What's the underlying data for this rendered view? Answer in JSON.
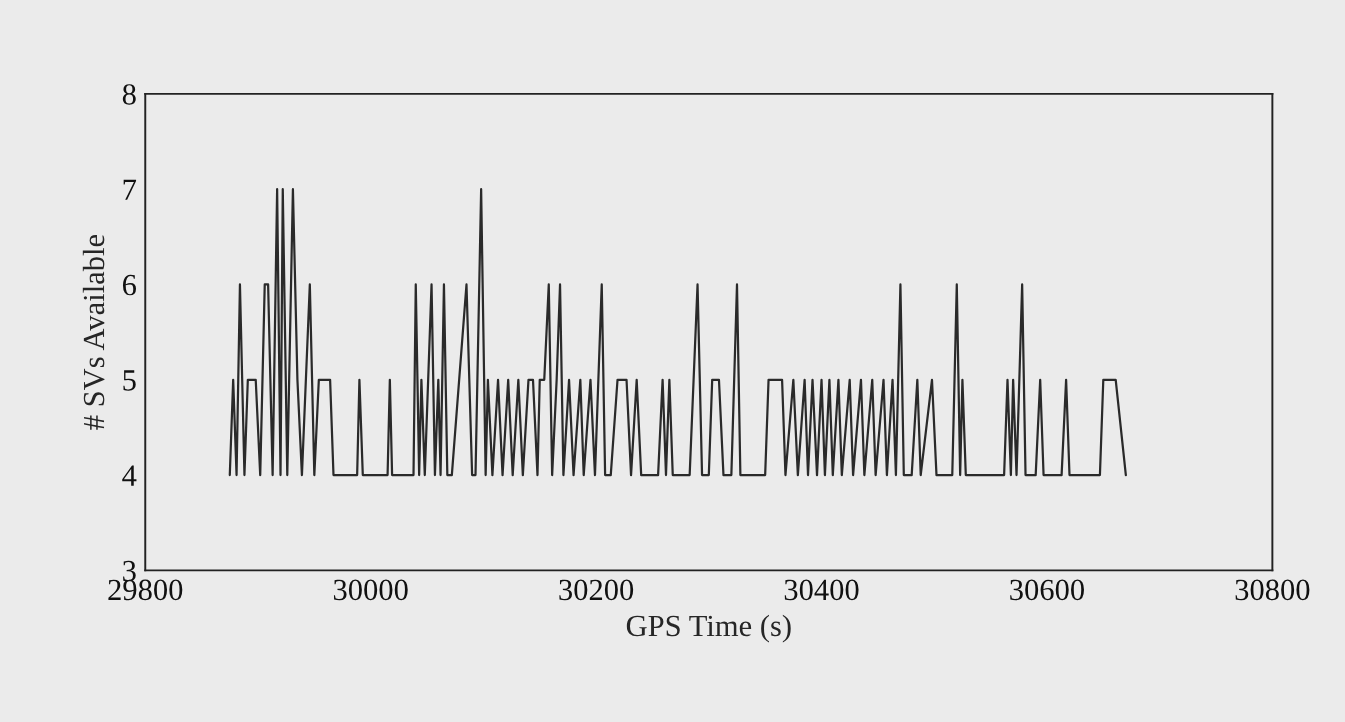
{
  "chart_data": {
    "type": "line",
    "xlabel": "GPS Time (s)",
    "ylabel": "# SVs Available",
    "xlim": [
      29800,
      30800
    ],
    "xticks": [
      29800,
      30000,
      30200,
      30400,
      30600,
      30800
    ],
    "ylim": [
      3,
      8
    ],
    "yticks": [
      3,
      4,
      5,
      6,
      7,
      8
    ],
    "grid": false,
    "legend": false,
    "marker": "none",
    "line_style": "solid",
    "series": [
      {
        "color": "#2a2a2a",
        "x": [
          29875,
          29878,
          29881,
          29884,
          29888,
          29891,
          29898,
          29902,
          29906,
          29909,
          29913,
          29917,
          29920,
          29922,
          29926,
          29931,
          29935,
          29939,
          29946,
          29950,
          29954,
          29964,
          29967,
          29988,
          29990,
          29993,
          30015,
          30017,
          30019,
          30038,
          30040,
          30043,
          30045,
          30048,
          30054,
          30057,
          30060,
          30062,
          30065,
          30068,
          30072,
          30085,
          30090,
          30093,
          30098,
          30102,
          30104,
          30108,
          30113,
          30117,
          30122,
          30126,
          30131,
          30135,
          30140,
          30144,
          30148,
          30150,
          30154,
          30158,
          30161,
          30165,
          30168,
          30171,
          30176,
          30180,
          30186,
          30189,
          30195,
          30199,
          30205,
          30208,
          30213,
          30219,
          30227,
          30231,
          30236,
          30240,
          30255,
          30259,
          30262,
          30265,
          30268,
          30283,
          30290,
          30294,
          30300,
          30303,
          30309,
          30313,
          30320,
          30325,
          30328,
          30350,
          30353,
          30365,
          30368,
          30375,
          30379,
          30385,
          30388,
          30392,
          30396,
          30400,
          30403,
          30407,
          30410,
          30415,
          30418,
          30425,
          30428,
          30435,
          30438,
          30445,
          30448,
          30455,
          30458,
          30463,
          30466,
          30470,
          30473,
          30480,
          30485,
          30488,
          30498,
          30502,
          30516,
          30520,
          30523,
          30525,
          30528,
          30562,
          30565,
          30568,
          30570,
          30573,
          30578,
          30581,
          30590,
          30594,
          30597,
          30613,
          30617,
          30620,
          30647,
          30650,
          30661,
          30670
        ],
        "values": [
          4,
          5,
          4,
          6,
          4,
          5,
          5,
          4,
          6,
          6,
          4,
          7,
          4,
          7,
          4,
          7,
          5,
          4,
          6,
          4,
          5,
          5,
          4,
          4,
          5,
          4,
          4,
          5,
          4,
          4,
          6,
          4,
          5,
          4,
          6,
          4,
          5,
          4,
          6,
          4,
          4,
          6,
          4,
          4,
          7,
          4,
          5,
          4,
          5,
          4,
          5,
          4,
          5,
          4,
          5,
          5,
          4,
          5,
          5,
          6,
          4,
          5,
          6,
          4,
          5,
          4,
          5,
          4,
          5,
          4,
          6,
          4,
          4,
          5,
          5,
          4,
          5,
          4,
          4,
          5,
          4,
          5,
          4,
          4,
          6,
          4,
          4,
          5,
          5,
          4,
          4,
          6,
          4,
          4,
          5,
          5,
          4,
          5,
          4,
          5,
          4,
          5,
          4,
          5,
          4,
          5,
          4,
          5,
          4,
          5,
          4,
          5,
          4,
          5,
          4,
          5,
          4,
          5,
          4,
          6,
          4,
          4,
          5,
          4,
          5,
          4,
          4,
          6,
          4,
          5,
          4,
          4,
          5,
          4,
          5,
          4,
          6,
          4,
          4,
          5,
          4,
          4,
          5,
          4,
          4,
          5,
          5,
          4
        ]
      }
    ]
  }
}
